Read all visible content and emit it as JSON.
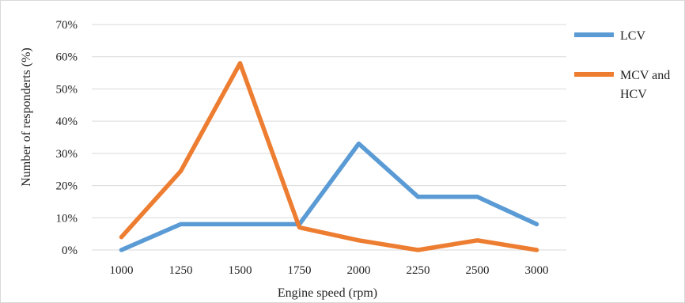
{
  "chart_data": {
    "type": "line",
    "xlabel": "Engine speed (rpm)",
    "ylabel": "Number of responderts (%)",
    "categories": [
      "1000",
      "1250",
      "1500",
      "1750",
      "2000",
      "2250",
      "2500",
      "3000"
    ],
    "ylim": [
      0,
      70
    ],
    "yticks": [
      "0%",
      "10%",
      "20%",
      "30%",
      "40%",
      "50%",
      "60%",
      "70%"
    ],
    "grid": true,
    "legend_position": "right",
    "series": [
      {
        "name": "LCV",
        "color": "#5b9bd5",
        "values": [
          0,
          8,
          8,
          8,
          33,
          16.5,
          16.5,
          8
        ]
      },
      {
        "name": "MCV and HCV",
        "name_lines": [
          "MCV and",
          "HCV"
        ],
        "color": "#ed7d31",
        "values": [
          4,
          24.5,
          58,
          7,
          3,
          0,
          3,
          0
        ]
      }
    ]
  }
}
